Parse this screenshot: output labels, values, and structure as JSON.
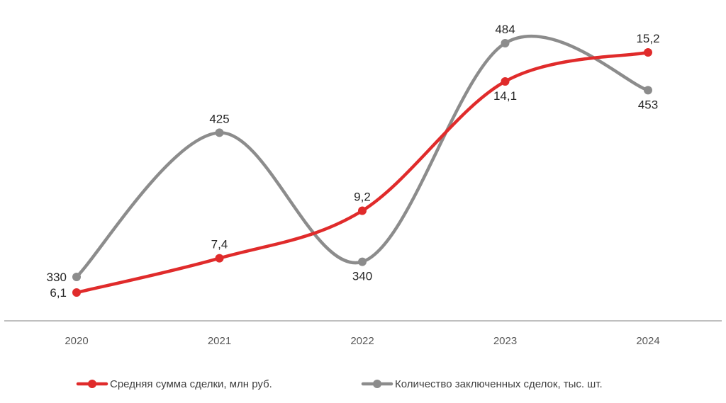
{
  "chart_data": {
    "type": "line",
    "categories": [
      "2020",
      "2021",
      "2022",
      "2023",
      "2024"
    ],
    "series": [
      {
        "name": "Средняя сумма сделки, млн руб.",
        "color": "#e02b2b",
        "values": [
          6.1,
          7.4,
          9.2,
          14.1,
          15.2
        ],
        "labels": [
          "6,1",
          "7,4",
          "9,2",
          "14,1",
          "15,2"
        ],
        "label_positions": [
          "left",
          "above",
          "above",
          "below",
          "above"
        ]
      },
      {
        "name": "Количество заключенных сделок, тыс. шт.",
        "color": "#8c8c8c",
        "values": [
          330,
          425,
          340,
          484,
          453
        ],
        "labels": [
          "330",
          "425",
          "340",
          "484",
          "453"
        ],
        "label_positions": [
          "left",
          "above",
          "below",
          "above",
          "below"
        ]
      }
    ],
    "smooth": true,
    "axes": "none",
    "grid": false,
    "legend": "bottom"
  }
}
